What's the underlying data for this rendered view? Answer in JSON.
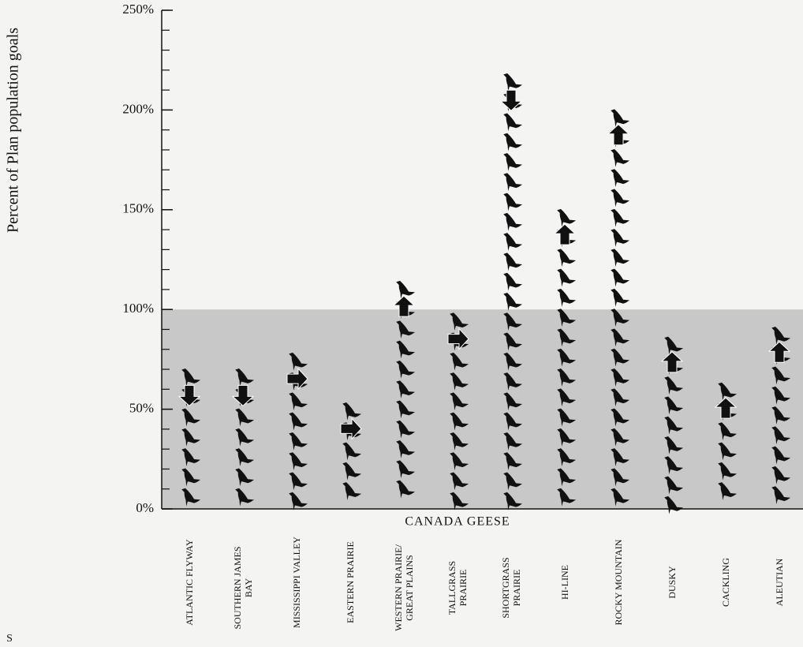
{
  "chart_data": {
    "type": "pictogram",
    "y_label": "Percent of Plan population goals",
    "x_label": "CANADA GEESE",
    "categories": [
      "ATLANTIC FLYWAY",
      "SOUTHERN JAMES BAY",
      "MISSISSIPPI VALLEY",
      "EASTERN PRAIRIE",
      "WESTERN PRAIRIE/ GREAT PLAINS",
      "TALLGRASS PRAIRIE",
      "SHORTGRASS PRAIRIE",
      "HI-LINE",
      "ROCKY MOUNTAIN",
      "DUSKY",
      "CACKLING",
      "ALEUTIAN"
    ],
    "values": [
      68,
      68,
      76,
      51,
      112,
      96,
      216,
      148,
      198,
      84,
      61,
      89
    ],
    "trends": [
      "down",
      "down",
      "right",
      "right",
      "up",
      "right",
      "down",
      "up",
      "up",
      "up",
      "up",
      "up"
    ],
    "color": "#111111",
    "shade_below": 100,
    "ylim": [
      0,
      250
    ],
    "yticks": [
      {
        "value": 0,
        "label": "0%"
      },
      {
        "value": 50,
        "label": "50%"
      },
      {
        "value": 100,
        "label": "100%"
      },
      {
        "value": 150,
        "label": "150%"
      },
      {
        "value": 200,
        "label": "200%"
      },
      {
        "value": 250,
        "label": "250%"
      }
    ],
    "minor_step": 10,
    "icon_step": 10,
    "corner_text": "S"
  }
}
